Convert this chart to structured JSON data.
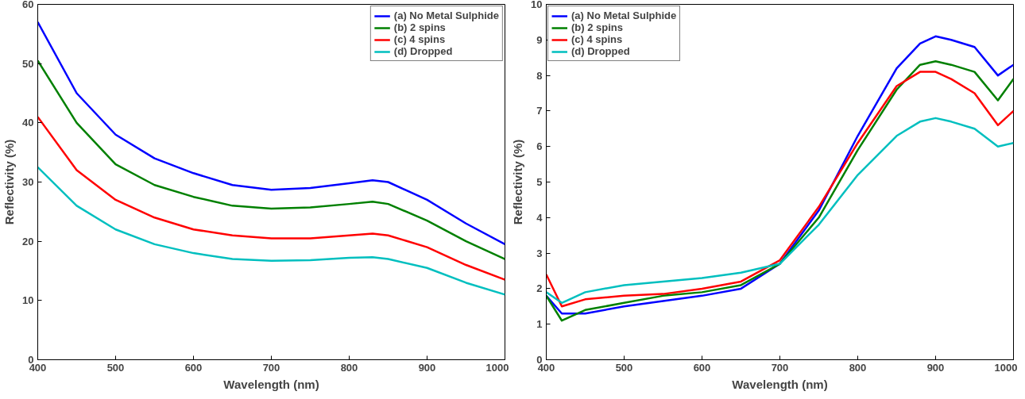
{
  "chart_data": [
    {
      "type": "line",
      "xlabel": "Wavelength (nm)",
      "ylabel": "Reflectivity (%)",
      "xlim": [
        400,
        1000
      ],
      "ylim": [
        0,
        60
      ],
      "xticks": [
        400,
        500,
        600,
        700,
        800,
        900,
        1000
      ],
      "yticks": [
        0,
        10,
        20,
        30,
        40,
        50,
        60
      ],
      "legend": "top right",
      "grid": false,
      "x": [
        400,
        450,
        500,
        550,
        600,
        650,
        700,
        750,
        800,
        830,
        850,
        900,
        950,
        1000
      ],
      "series": [
        {
          "name": "(a) No Metal Sulphide",
          "color": "#0000ff",
          "values": [
            57,
            45,
            38,
            34,
            31.5,
            29.5,
            28.7,
            29,
            29.8,
            30.3,
            30,
            27,
            23,
            19.5
          ]
        },
        {
          "name": "(b) 2 spins",
          "color": "#008000",
          "values": [
            50.5,
            40,
            33,
            29.5,
            27.5,
            26,
            25.5,
            25.7,
            26.3,
            26.7,
            26.3,
            23.5,
            20,
            17
          ]
        },
        {
          "name": "(c) 4 spins",
          "color": "#ff0000",
          "values": [
            41,
            32,
            27,
            24,
            22,
            21,
            20.5,
            20.5,
            21,
            21.3,
            21,
            19,
            16,
            13.5
          ]
        },
        {
          "name": "(d) Dropped",
          "color": "#00bfbf",
          "values": [
            32.5,
            26,
            22,
            19.5,
            18,
            17,
            16.7,
            16.8,
            17.2,
            17.3,
            17,
            15.5,
            13,
            11
          ]
        }
      ]
    },
    {
      "type": "line",
      "xlabel": "Wavelength (nm)",
      "ylabel": "Reflectivity (%)",
      "xlim": [
        400,
        1000
      ],
      "ylim": [
        0,
        10
      ],
      "xticks": [
        400,
        500,
        600,
        700,
        800,
        900,
        1000
      ],
      "yticks": [
        0,
        1,
        2,
        3,
        4,
        5,
        6,
        7,
        8,
        9,
        10
      ],
      "legend": "top left",
      "grid": false,
      "x": [
        400,
        420,
        450,
        500,
        550,
        600,
        650,
        700,
        750,
        800,
        850,
        880,
        900,
        920,
        950,
        980,
        1000
      ],
      "series": [
        {
          "name": "(a) No Metal Sulphide",
          "color": "#0000ff",
          "values": [
            1.8,
            1.3,
            1.3,
            1.5,
            1.65,
            1.8,
            2.0,
            2.7,
            4.2,
            6.3,
            8.2,
            8.9,
            9.1,
            9.0,
            8.8,
            8.0,
            8.3
          ]
        },
        {
          "name": "(b) 2 spins",
          "color": "#008000",
          "values": [
            1.8,
            1.1,
            1.4,
            1.6,
            1.8,
            1.9,
            2.1,
            2.7,
            4.0,
            5.9,
            7.6,
            8.3,
            8.4,
            8.3,
            8.1,
            7.3,
            7.9
          ]
        },
        {
          "name": "(c) 4 spins",
          "color": "#ff0000",
          "values": [
            2.4,
            1.5,
            1.7,
            1.8,
            1.85,
            2.0,
            2.2,
            2.8,
            4.3,
            6.1,
            7.7,
            8.1,
            8.1,
            7.9,
            7.5,
            6.6,
            7.0
          ]
        },
        {
          "name": "(d) Dropped",
          "color": "#00bfbf",
          "values": [
            1.9,
            1.6,
            1.9,
            2.1,
            2.2,
            2.3,
            2.45,
            2.7,
            3.8,
            5.2,
            6.3,
            6.7,
            6.8,
            6.7,
            6.5,
            6.0,
            6.1
          ]
        }
      ]
    }
  ]
}
